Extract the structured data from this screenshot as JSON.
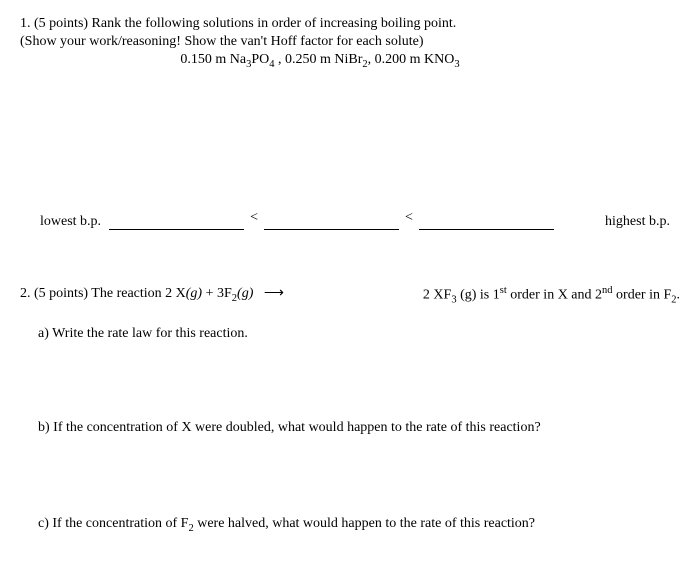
{
  "q1": {
    "header": "1.  (5 points) Rank the following solutions in order of increasing boiling point.",
    "instruction": "(Show your work/reasoning!  Show the van't Hoff factor for each solute)",
    "solutions_prefix": "0.150 m Na",
    "solutions_mid1": "PO",
    "solutions_mid2": " , 0.250 m NiBr",
    "solutions_mid3": ", 0.200 m KNO",
    "lowest_label": "lowest b.p.",
    "highest_label": "highest b.p.",
    "lt": "<"
  },
  "q2": {
    "header_left_a": "2.  (5 points)  The reaction 2 X",
    "header_left_b": "(g)",
    "header_left_c": " + 3F",
    "header_left_d": "(g)",
    "arrow": "⟶",
    "header_right_a": "2 XF",
    "header_right_b": " (g) is 1",
    "header_right_c": " order in X and 2",
    "header_right_d": "  order in F",
    "header_right_e": ".",
    "part_a": "a) Write the rate law for this reaction.",
    "part_b": "b) If the concentration of X were doubled, what would happen to the rate of this reaction?",
    "part_c_a": "c) If the concentration of F",
    "part_c_b": " were halved, what would happen to the rate of this reaction?"
  }
}
